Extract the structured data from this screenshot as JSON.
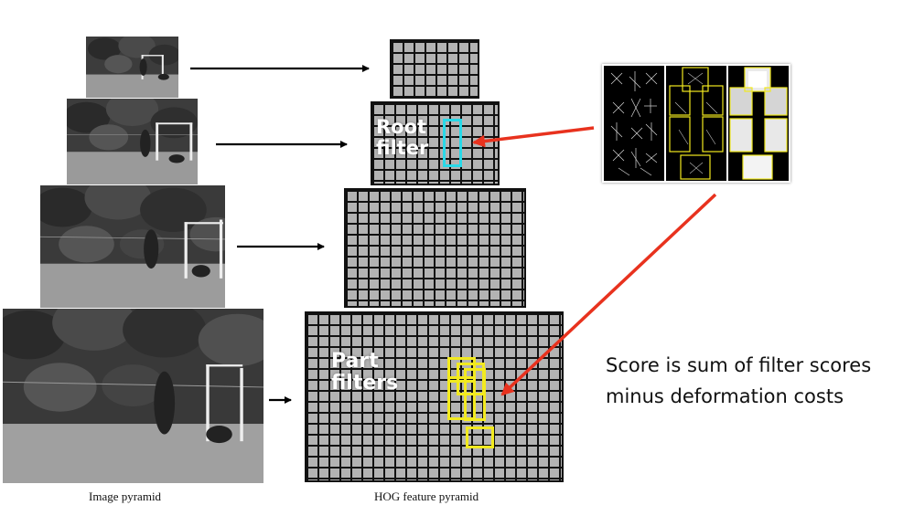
{
  "captions": {
    "image_pyramid": "Image pyramid",
    "hog_pyramid": "HOG feature pyramid"
  },
  "labels": {
    "root_line1": "Root",
    "root_line2": "filter",
    "part_line1": "Part",
    "part_line2": "filters"
  },
  "score": {
    "line1": "Score is sum of filter scores",
    "line2": "minus deformation costs"
  },
  "colors": {
    "root_filter_box": "#29d9e8",
    "part_filter_box": "#f2ea1f",
    "model_arrow": "#e8321e",
    "grid_fill": "#b3b3b3",
    "grid_line": "#111111"
  },
  "icons": {
    "arrow": "right-arrow"
  }
}
